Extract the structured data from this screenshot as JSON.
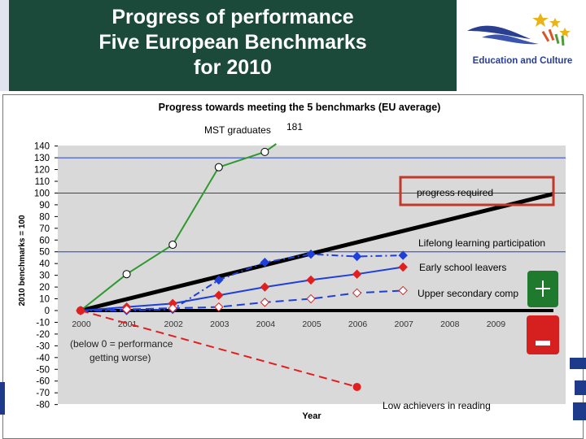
{
  "slide": {
    "title_lines": [
      "Progress of performance",
      "Five European Benchmarks",
      "for 2010"
    ],
    "logo_text": "Education and Culture",
    "colors": {
      "title_bg": "#1b4a3b",
      "title_text": "#ffffff",
      "logo_blue": "#2a3f8f"
    },
    "plus_icon": "plus-icon",
    "minus_icon": "minus-icon"
  },
  "chart_data": {
    "type": "line",
    "title": "Progress towards meeting the 5 benchmarks (EU average)",
    "xlabel": "Year",
    "ylabel": "2010 benchmarks = 100",
    "x": [
      "2000",
      "2001",
      "2002",
      "2003",
      "2004",
      "2005",
      "2006",
      "2007",
      "2008",
      "2009"
    ],
    "ylim": [
      -80,
      140
    ],
    "yticks": [
      "140",
      "130",
      "120",
      "110",
      "100",
      "90",
      "80",
      "70",
      "60",
      "50",
      "40",
      "30",
      "20",
      "10",
      "0",
      "-10",
      "-20",
      "-30",
      "-40",
      "-50",
      "-60",
      "-70",
      "-80"
    ],
    "ytick_values": [
      140,
      130,
      120,
      110,
      100,
      90,
      80,
      70,
      60,
      50,
      40,
      30,
      20,
      10,
      0,
      -10,
      -20,
      -30,
      -40,
      -50,
      -60,
      -70,
      -80
    ],
    "reference_lines": [
      50,
      100,
      130
    ],
    "series": [
      {
        "name": "MST graduates",
        "color": "#2e9a2e",
        "marker": "circle-open",
        "dash": "solid",
        "x": [
          0,
          1,
          2,
          3,
          4
        ],
        "values": [
          0,
          31,
          56,
          122,
          135
        ],
        "end_label": "181"
      },
      {
        "name": "Lifelong learning participation",
        "color": "#1f3fd6",
        "marker": "diamond",
        "dash": "dashdot",
        "x": [
          0,
          1,
          2,
          3,
          4,
          5,
          6,
          7
        ],
        "values": [
          0,
          0,
          1,
          26,
          41,
          48,
          46,
          47
        ]
      },
      {
        "name": "Early school leavers",
        "color": "#1f3fd6",
        "marker": "diamond-red",
        "dash": "solid",
        "x": [
          0,
          1,
          2,
          3,
          4,
          5,
          6,
          7
        ],
        "values": [
          0,
          3,
          6,
          13,
          20,
          26,
          31,
          37
        ]
      },
      {
        "name": "Upper secondary completion",
        "color": "#1f3fd6",
        "marker": "diamond-open-red",
        "dash": "dashed",
        "x": [
          0,
          1,
          2,
          3,
          4,
          5,
          6,
          7
        ],
        "values": [
          0,
          1,
          2,
          3,
          7,
          10,
          15,
          17
        ]
      },
      {
        "name": "Low achievers in reading",
        "color": "#e02020",
        "marker": "circle-red",
        "dash": "dashed",
        "x": [
          0,
          6
        ],
        "values": [
          0,
          -65
        ]
      }
    ],
    "progress_line": {
      "name": "progress required",
      "from": [
        0,
        0
      ],
      "to": [
        10.5,
        100
      ]
    },
    "annotations": {
      "mst_label": "MST graduates",
      "mst_value": "181",
      "progress_required": "progress required",
      "lifelong": "Lifelong learning participation",
      "early_school": "Early school leavers",
      "upper_secondary": "Upper secondary comp",
      "low_achievers": "Low achievers in reading",
      "below_zero_line1": "(below 0 = performance",
      "below_zero_line2": "getting worse)"
    },
    "grid": false,
    "plot_background": "#d9d9d9"
  }
}
